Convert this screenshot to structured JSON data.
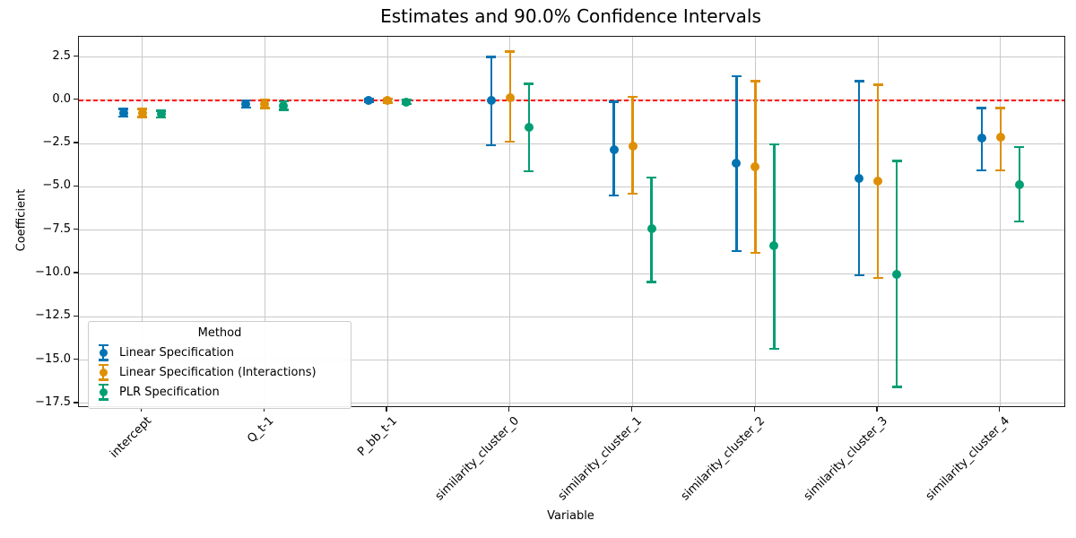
{
  "chart_data": {
    "type": "scatter",
    "subtype": "errorbar",
    "title": "Estimates and 90.0% Confidence Intervals",
    "confidence_level": "90.0%",
    "xlabel": "Variable",
    "ylabel": "Coefficient",
    "categories": [
      "intercept",
      "Q_t-1",
      "P_bb_t-1",
      "similarity_cluster_0",
      "similarity_cluster_1",
      "similarity_cluster_2",
      "similarity_cluster_3",
      "similarity_cluster_4"
    ],
    "ylim": [
      -17.7,
      3.7
    ],
    "yticks": [
      2.5,
      0.0,
      -2.5,
      -5.0,
      -7.5,
      -10.0,
      -12.5,
      -15.0,
      -17.5
    ],
    "ytick_labels": [
      "2.5",
      "0.0",
      "−2.5",
      "−5.0",
      "−7.5",
      "−10.0",
      "−12.5",
      "−15.0",
      "−17.5"
    ],
    "grid": true,
    "reference_line": {
      "y": 0.0,
      "color": "#ff0000",
      "linestyle": "dashed"
    },
    "legend": {
      "title": "Method",
      "position": "lower-left"
    },
    "series": [
      {
        "name": "Linear Specification",
        "color": "#0173b2",
        "estimates": [
          -0.73,
          -0.21,
          0.0,
          0.0,
          -2.86,
          -3.62,
          -4.5,
          -2.2
        ],
        "ci_low": [
          -0.95,
          -0.42,
          -0.1,
          -2.6,
          -5.5,
          -8.7,
          -10.1,
          -4.05
        ],
        "ci_high": [
          -0.51,
          0.0,
          0.1,
          2.5,
          -0.1,
          1.4,
          1.1,
          -0.45
        ]
      },
      {
        "name": "Linear Specification (Interactions)",
        "color": "#de8f05",
        "estimates": [
          -0.73,
          -0.21,
          -0.03,
          0.17,
          -2.64,
          -3.83,
          -4.67,
          -2.15
        ],
        "ci_low": [
          -0.97,
          -0.45,
          -0.15,
          -2.4,
          -5.4,
          -8.8,
          -10.25,
          -4.05
        ],
        "ci_high": [
          -0.49,
          0.03,
          0.09,
          2.8,
          0.2,
          1.1,
          0.9,
          -0.45
        ]
      },
      {
        "name": "PLR Specification",
        "color": "#029e73",
        "estimates": [
          -0.8,
          -0.31,
          -0.1,
          -1.55,
          -7.4,
          -8.4,
          -10.05,
          -4.9
        ],
        "ci_low": [
          -1.0,
          -0.55,
          -0.22,
          -4.1,
          -10.5,
          -14.35,
          -16.55,
          -7.0
        ],
        "ci_high": [
          -0.6,
          -0.07,
          0.02,
          0.95,
          -4.45,
          -2.55,
          -3.5,
          -2.7
        ]
      }
    ]
  }
}
